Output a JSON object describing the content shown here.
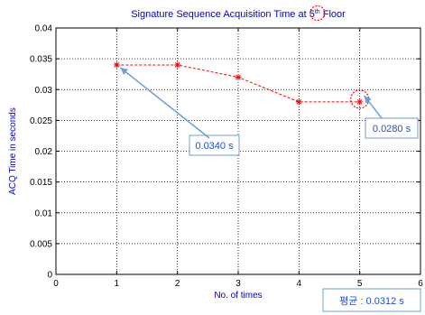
{
  "chart_data": {
    "type": "line",
    "title": "Signature Sequence Acquisition Time at 5",
    "title_superscript": "th",
    "title_suffix": " Floor",
    "xlabel": "No. of times",
    "ylabel": "ACQ Time in seconds",
    "xlim": [
      0,
      6
    ],
    "ylim": [
      0,
      0.04
    ],
    "x_ticks": [
      0,
      1,
      2,
      3,
      4,
      5,
      6
    ],
    "x_tick_labels": [
      "0",
      "1",
      "2",
      "3",
      "4",
      "5",
      "6"
    ],
    "y_ticks": [
      0,
      0.005,
      0.01,
      0.015,
      0.02,
      0.025,
      0.03,
      0.035,
      0.04
    ],
    "y_tick_labels": [
      "0",
      "0.005",
      "0.01",
      "0.015",
      "0.02",
      "0.025",
      "0.03",
      "0.035",
      "0.04"
    ],
    "grid": true,
    "series": [
      {
        "x": [
          1,
          2,
          3,
          4,
          5
        ],
        "values": [
          0.034,
          0.034,
          0.032,
          0.028,
          0.028
        ],
        "color": "#ff0000",
        "line_style": "dashed",
        "marker": "asterisk"
      }
    ],
    "annotations": [
      {
        "text": "0.0340 s",
        "target_x": 1,
        "target_y": 0.034
      },
      {
        "text": "0.0280 s",
        "target_x": 5,
        "target_y": 0.028
      }
    ],
    "average_label": "평균 : 0.0312  s",
    "colors": {
      "title": "#0000cc",
      "axis_label": "#0000cc",
      "annotation": "#1a4fd6",
      "annotation_arrow": "#6d9ecf",
      "highlight_circle": "#ff0000"
    }
  }
}
